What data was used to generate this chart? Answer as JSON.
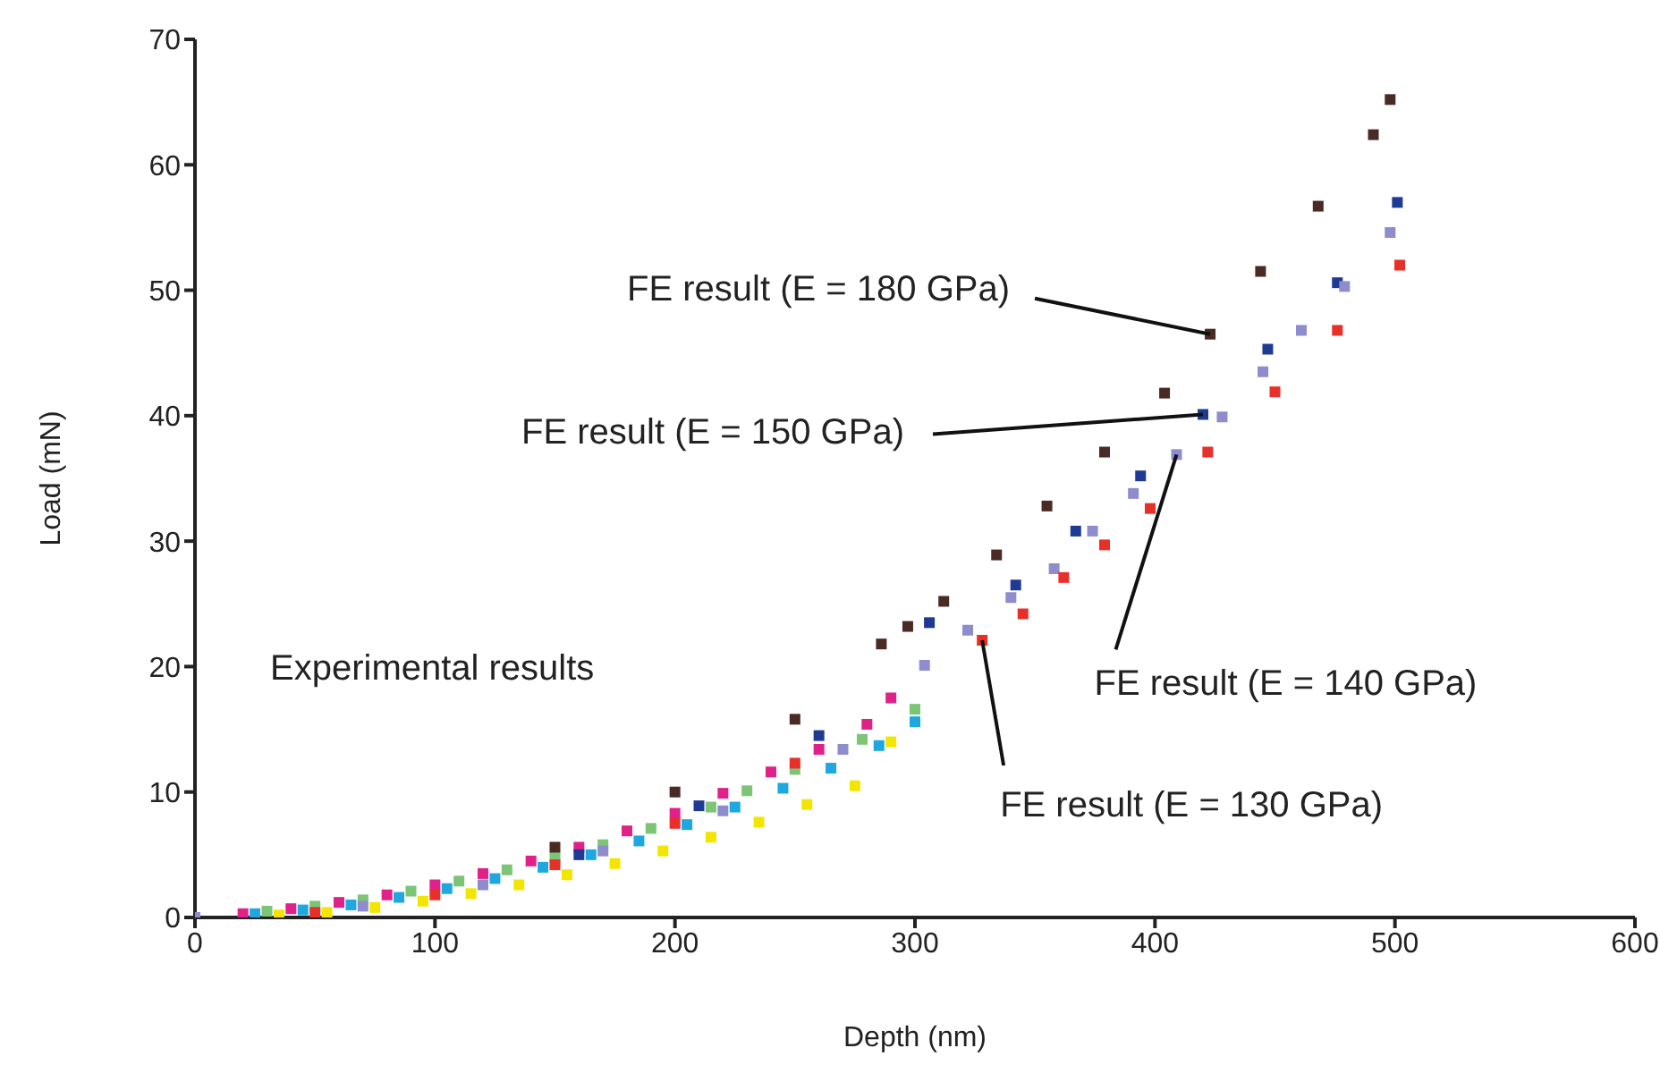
{
  "chart_data": {
    "type": "scatter",
    "xlabel": "Depth (nm)",
    "ylabel": "Load (mN)",
    "xlim": [
      0,
      600
    ],
    "xticks": [
      0,
      100,
      200,
      300,
      400,
      500,
      600
    ],
    "ylim": [
      0,
      70
    ],
    "yticks": [
      0,
      10,
      20,
      30,
      40,
      50,
      60,
      70
    ],
    "grid": false,
    "legend": false,
    "marker": "square",
    "annotations": [
      "Experimental results",
      {
        "text": "FE result (E = 180 GPa)",
        "x": 423,
        "y": 46.5
      },
      {
        "text": "FE result (E = 150 GPa)",
        "x": 420,
        "y": 40.1
      },
      {
        "text": "FE result (E = 140 GPa)",
        "x": 409,
        "y": 36.9
      },
      {
        "text": "FE result (E = 130 GPa)",
        "x": 328,
        "y": 22.1
      }
    ],
    "series": [
      {
        "color": "#e0218a",
        "x": [
          20,
          40,
          60,
          80,
          100,
          120,
          140,
          160,
          180,
          200,
          220,
          240,
          260,
          280,
          290
        ],
        "values": [
          0.3,
          0.7,
          1.2,
          1.8,
          2.6,
          3.5,
          4.5,
          5.6,
          6.9,
          8.3,
          9.9,
          11.6,
          13.4,
          15.4,
          17.5
        ]
      },
      {
        "color": "#7cc576",
        "x": [
          30,
          50,
          70,
          90,
          110,
          130,
          150,
          170,
          190,
          215,
          230,
          250,
          278,
          300
        ],
        "values": [
          0.5,
          0.9,
          1.4,
          2.1,
          2.9,
          3.8,
          4.8,
          5.8,
          7.1,
          8.8,
          10.1,
          11.8,
          14.2,
          16.6
        ]
      },
      {
        "color": "#1fa8e0",
        "x": [
          25,
          45,
          65,
          85,
          105,
          125,
          145,
          165,
          185,
          205,
          225,
          245,
          265,
          285,
          300
        ],
        "values": [
          0.3,
          0.6,
          1.0,
          1.6,
          2.3,
          3.1,
          4.0,
          5.0,
          6.1,
          7.4,
          8.8,
          10.3,
          11.9,
          13.7,
          15.6
        ]
      },
      {
        "color": "#f2e600",
        "x": [
          35,
          55,
          75,
          95,
          115,
          135,
          155,
          175,
          195,
          215,
          235,
          255,
          275,
          290
        ],
        "values": [
          0.2,
          0.4,
          0.8,
          1.3,
          1.9,
          2.6,
          3.4,
          4.3,
          5.3,
          6.4,
          7.6,
          9.0,
          10.5,
          14.0
        ]
      },
      {
        "color": "#4a2a25",
        "x": [
          150,
          200,
          250,
          286,
          297,
          312,
          334,
          355,
          379,
          404,
          423,
          444,
          468,
          491,
          498
        ],
        "values": [
          5.6,
          10,
          15.8,
          21.8,
          23.2,
          25.2,
          28.9,
          32.8,
          37.1,
          41.8,
          46.5,
          51.5,
          56.7,
          62.4,
          65.2
        ]
      },
      {
        "color": "#1f3a93",
        "x": [
          160,
          210,
          260,
          306,
          342,
          367,
          394,
          420,
          447,
          476,
          501
        ],
        "values": [
          5.0,
          8.9,
          14.5,
          23.5,
          26.5,
          30.8,
          35.2,
          40.1,
          45.3,
          50.6,
          57.0
        ]
      },
      {
        "color": "#8e8ccc",
        "x": [
          0,
          70,
          120,
          170,
          220,
          270,
          304,
          322,
          340,
          358,
          374,
          391,
          409,
          428,
          445,
          461,
          479,
          498
        ],
        "values": [
          0,
          0.9,
          2.6,
          5.3,
          8.5,
          13.4,
          20.1,
          22.9,
          25.5,
          27.8,
          30.8,
          33.8,
          36.9,
          39.9,
          43.5,
          46.8,
          50.3,
          54.6
        ]
      },
      {
        "color": "#e8302a",
        "x": [
          50,
          100,
          150,
          200,
          250,
          328,
          345,
          362,
          379,
          398,
          422,
          450,
          476,
          502
        ],
        "values": [
          0.4,
          1.8,
          4.2,
          7.5,
          12.3,
          22.1,
          24.2,
          27.1,
          29.7,
          32.6,
          37.1,
          41.9,
          46.8,
          52.0
        ]
      }
    ]
  }
}
